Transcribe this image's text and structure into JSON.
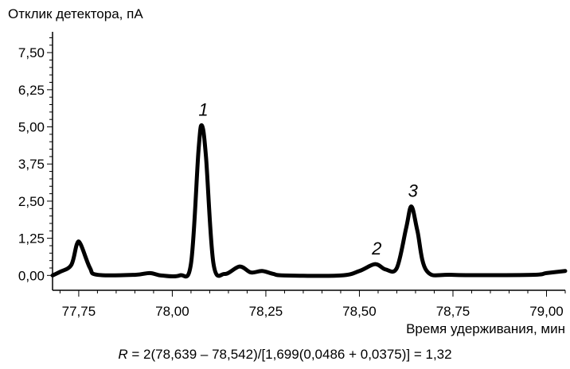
{
  "chart_data": {
    "type": "line",
    "ylabel": "Отклик детектора, пА",
    "xlabel": "Время удерживания, мин",
    "xlim": [
      77.68,
      79.05
    ],
    "ylim": [
      -0.5,
      8.2
    ],
    "yticks": [
      "0,00",
      "1,25",
      "2,50",
      "3,75",
      "5,00",
      "6,25",
      "7,50"
    ],
    "yticks_values": [
      0,
      1.25,
      2.5,
      3.75,
      5.0,
      6.25,
      7.5
    ],
    "xticks": [
      "77,75",
      "78,00",
      "78,25",
      "78,50",
      "78,75",
      "79,00"
    ],
    "xticks_values": [
      77.75,
      78.0,
      78.25,
      78.5,
      78.75,
      79.0
    ],
    "grid": false,
    "series": [
      {
        "line_color": "#000000",
        "x": [
          77.68,
          77.7,
          77.73,
          77.745,
          77.755,
          77.78,
          77.8,
          77.9,
          77.94,
          77.97,
          78.02,
          78.05,
          78.07,
          78.079,
          78.09,
          78.11,
          78.14,
          78.18,
          78.21,
          78.24,
          78.27,
          78.3,
          78.45,
          78.5,
          78.542,
          78.57,
          78.6,
          78.625,
          78.639,
          78.655,
          78.68,
          78.75,
          78.96,
          79.0,
          79.05
        ],
        "y": [
          0.0,
          0.12,
          0.35,
          1.05,
          1.05,
          0.25,
          0.02,
          0.02,
          0.08,
          0.0,
          0.0,
          0.4,
          4.2,
          5.05,
          4.0,
          0.4,
          0.05,
          0.3,
          0.1,
          0.15,
          0.05,
          0.0,
          0.0,
          0.15,
          0.38,
          0.2,
          0.25,
          1.6,
          2.32,
          1.5,
          0.15,
          0.02,
          0.02,
          0.08,
          0.15
        ]
      }
    ],
    "annotations": [
      {
        "text": "1",
        "x": 78.079,
        "y": 5.05
      },
      {
        "text": "2",
        "x": 78.542,
        "y": 0.38
      },
      {
        "text": "3",
        "x": 78.639,
        "y": 2.32
      }
    ],
    "formula": {
      "var": "R",
      "rest": " = 2(78,639 – 78,542)/[1,699(0,0486 + 0,0375)] = 1,32"
    }
  }
}
